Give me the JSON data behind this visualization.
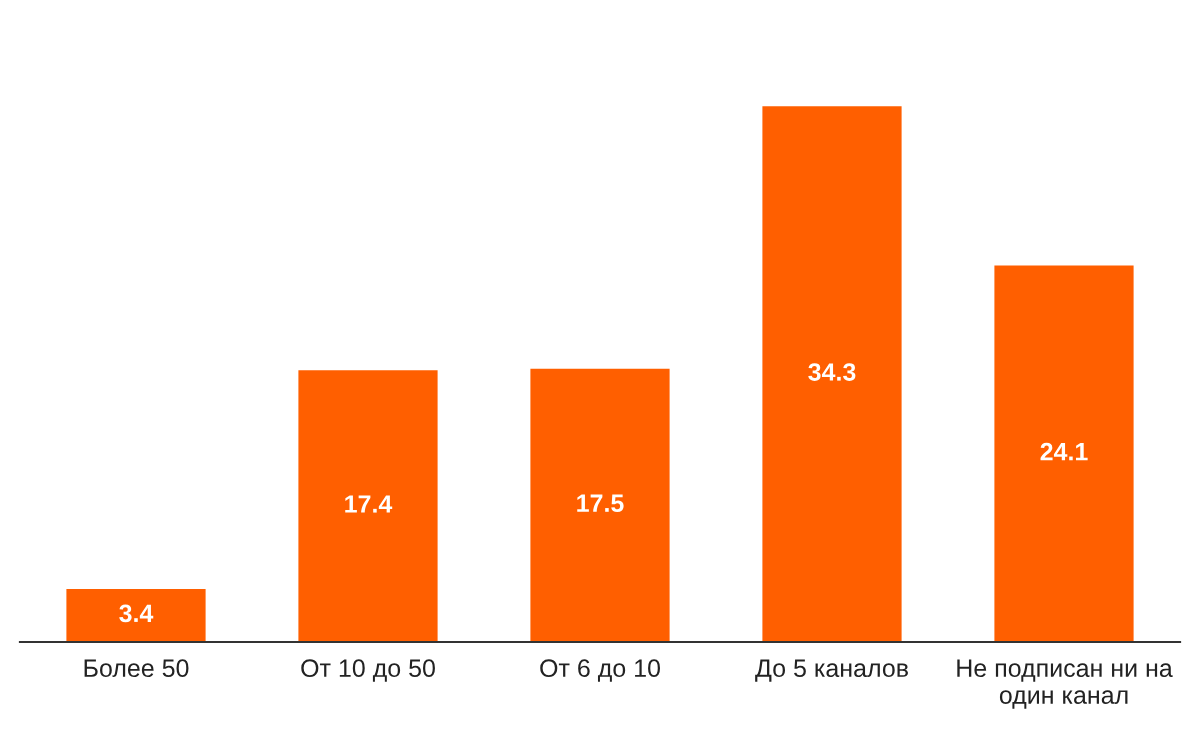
{
  "chart_data": {
    "type": "bar",
    "categories": [
      "Более 50",
      "От 10 до 50",
      "От 6 до 10",
      "До 5 каналов",
      "Не подписан ни на\nодин канал"
    ],
    "values": [
      3.4,
      17.4,
      17.5,
      34.3,
      24.1
    ],
    "color": "#ff5f00",
    "data_labels": true,
    "grid": false,
    "legend": false
  }
}
